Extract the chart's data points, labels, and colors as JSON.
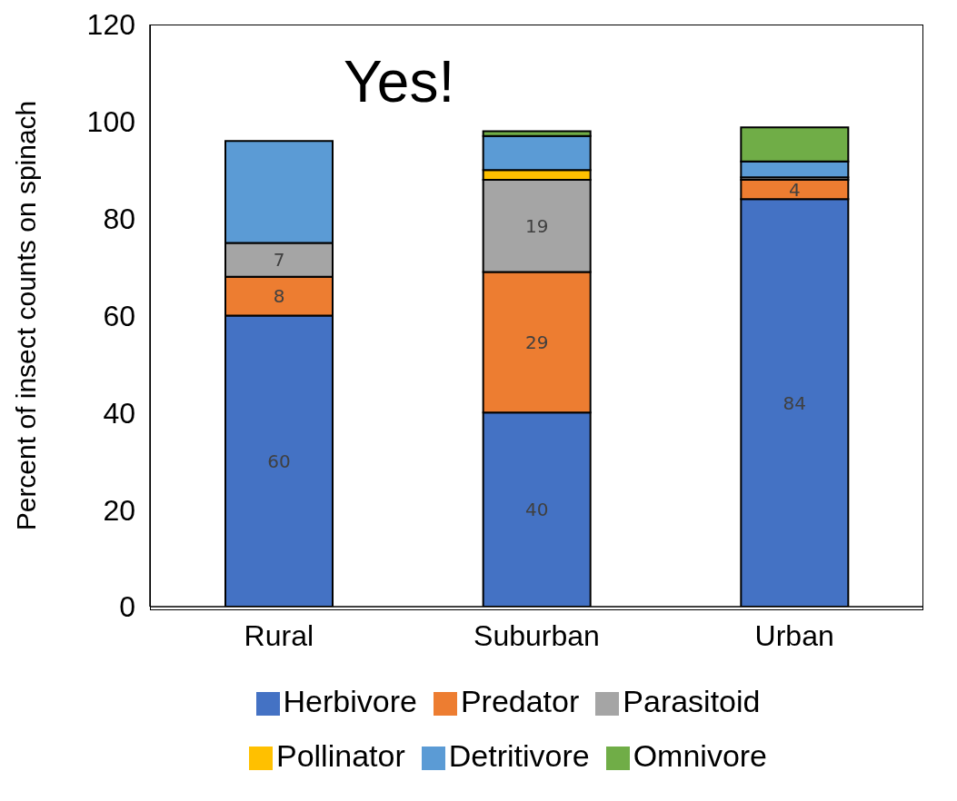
{
  "chart_data": {
    "type": "bar",
    "stacked": true,
    "ylabel": "Percent of insect counts on spinach",
    "categories": [
      "Rural",
      "Suburban",
      "Urban"
    ],
    "series": [
      {
        "name": "Herbivore",
        "color": "#4472c4",
        "values": [
          60,
          40,
          84
        ],
        "value_labels": [
          "60",
          "40",
          "84"
        ]
      },
      {
        "name": "Predator",
        "color": "#ed7d31",
        "values": [
          8,
          29,
          4
        ],
        "value_labels": [
          "8",
          "29",
          "4"
        ]
      },
      {
        "name": "Parasitoid",
        "color": "#a5a5a5",
        "values": [
          7,
          19,
          0.5
        ],
        "value_labels": [
          "7",
          "19",
          null
        ]
      },
      {
        "name": "Pollinator",
        "color": "#ffc000",
        "values": [
          0,
          2,
          0
        ]
      },
      {
        "name": "Detritivore",
        "color": "#5b9bd5",
        "values": [
          21,
          7,
          3.3
        ]
      },
      {
        "name": "Omnivore",
        "color": "#70ad47",
        "values": [
          0,
          1,
          7
        ]
      }
    ],
    "ylim": [
      0,
      120
    ],
    "yticks": [
      0,
      20,
      40,
      60,
      80,
      100,
      120
    ],
    "grid": false,
    "legend": "bottom",
    "annotations": [
      "Yes!"
    ]
  }
}
